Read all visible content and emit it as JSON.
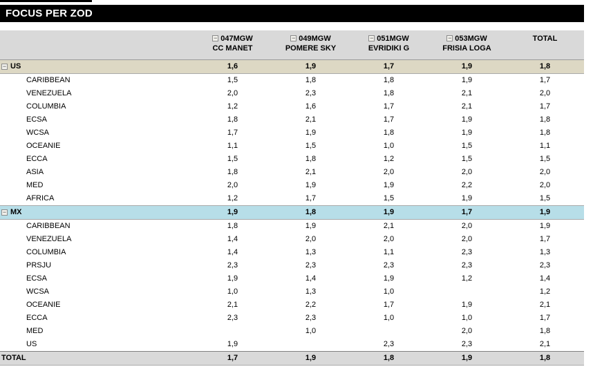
{
  "title": "FOCUS PER ZOD",
  "icons": {
    "collapse_glyph": "−"
  },
  "colors": {
    "title_bg": "#000000",
    "title_text": "#ffffff",
    "header_bg": "#D9D9D9",
    "us_group_row_bg": "#DDD8C4",
    "mx_group_row_bg": "#B7DEE8",
    "grand_total_bg": "#D9D9D9"
  },
  "columns": [
    {
      "top": "047MGW",
      "bottom": "CC MANET",
      "collapsible": true
    },
    {
      "top": "049MGW",
      "bottom": "POMERE SKY",
      "collapsible": true
    },
    {
      "top": "051MGW",
      "bottom": "EVRIDIKI G",
      "collapsible": true
    },
    {
      "top": "053MGW",
      "bottom": "FRISIA LOGA",
      "collapsible": true
    },
    {
      "top": "TOTAL",
      "bottom": "",
      "collapsible": false
    }
  ],
  "sections": [
    {
      "label": "US",
      "row_color": "#DDD8C4",
      "values": [
        "1,6",
        "1,9",
        "1,7",
        "1,9",
        "1,8"
      ],
      "children": [
        {
          "label": "CARIBBEAN",
          "values": [
            "1,5",
            "1,8",
            "1,8",
            "1,9",
            "1,7"
          ]
        },
        {
          "label": "VENEZUELA",
          "values": [
            "2,0",
            "2,3",
            "1,8",
            "2,1",
            "2,0"
          ]
        },
        {
          "label": "COLUMBIA",
          "values": [
            "1,2",
            "1,6",
            "1,7",
            "2,1",
            "1,7"
          ]
        },
        {
          "label": "ECSA",
          "values": [
            "1,8",
            "2,1",
            "1,7",
            "1,9",
            "1,8"
          ]
        },
        {
          "label": "WCSA",
          "values": [
            "1,7",
            "1,9",
            "1,8",
            "1,9",
            "1,8"
          ]
        },
        {
          "label": "OCEANIE",
          "values": [
            "1,1",
            "1,5",
            "1,0",
            "1,5",
            "1,1"
          ]
        },
        {
          "label": "ECCA",
          "values": [
            "1,5",
            "1,8",
            "1,2",
            "1,5",
            "1,5"
          ]
        },
        {
          "label": "ASIA",
          "values": [
            "1,8",
            "2,1",
            "2,0",
            "2,0",
            "2,0"
          ]
        },
        {
          "label": "MED",
          "values": [
            "2,0",
            "1,9",
            "1,9",
            "2,2",
            "2,0"
          ]
        },
        {
          "label": "AFRICA",
          "values": [
            "1,2",
            "1,7",
            "1,5",
            "1,9",
            "1,5"
          ]
        }
      ]
    },
    {
      "label": "MX",
      "row_color": "#B7DEE8",
      "values": [
        "1,9",
        "1,8",
        "1,9",
        "1,7",
        "1,9"
      ],
      "children": [
        {
          "label": "CARIBBEAN",
          "values": [
            "1,8",
            "1,9",
            "2,1",
            "2,0",
            "1,9"
          ]
        },
        {
          "label": "VENEZUELA",
          "values": [
            "1,4",
            "2,0",
            "2,0",
            "2,0",
            "1,7"
          ]
        },
        {
          "label": "COLUMBIA",
          "values": [
            "1,4",
            "1,3",
            "1,1",
            "2,3",
            "1,3"
          ]
        },
        {
          "label": "PRSJU",
          "values": [
            "2,3",
            "2,3",
            "2,3",
            "2,3",
            "2,3"
          ]
        },
        {
          "label": "ECSA",
          "values": [
            "1,9",
            "1,4",
            "1,9",
            "1,2",
            "1,4"
          ]
        },
        {
          "label": "WCSA",
          "values": [
            "1,0",
            "1,3",
            "1,0",
            "",
            "1,2"
          ]
        },
        {
          "label": "OCEANIE",
          "values": [
            "2,1",
            "2,2",
            "1,7",
            "1,9",
            "2,1"
          ]
        },
        {
          "label": "ECCA",
          "values": [
            "2,3",
            "2,3",
            "1,0",
            "1,0",
            "1,7"
          ]
        },
        {
          "label": "MED",
          "values": [
            "",
            "1,0",
            "",
            "2,0",
            "1,8"
          ]
        },
        {
          "label": "US",
          "values": [
            "1,9",
            "",
            "2,3",
            "2,3",
            "2,1"
          ]
        }
      ]
    }
  ],
  "grand_total": {
    "label": "TOTAL",
    "values": [
      "1,7",
      "1,9",
      "1,8",
      "1,9",
      "1,8"
    ]
  }
}
